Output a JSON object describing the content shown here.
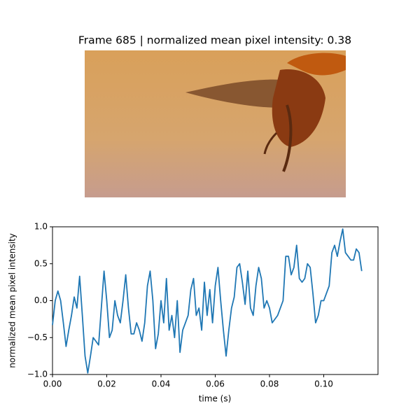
{
  "chart_data": {
    "type": "line",
    "title": "Frame 685 | normalized mean pixel intensity: 0.38",
    "xlabel": "time (s)",
    "ylabel": "normalized mean pixel intensity",
    "color": "#1f77b4",
    "xlim": [
      0,
      0.12
    ],
    "ylim": [
      -1,
      1
    ],
    "xticks": [
      {
        "value": 0,
        "label": "0.00"
      },
      {
        "value": 0.02,
        "label": "0.02"
      },
      {
        "value": 0.04,
        "label": "0.04"
      },
      {
        "value": 0.06,
        "label": "0.06"
      },
      {
        "value": 0.08,
        "label": "0.08"
      },
      {
        "value": 0.1,
        "label": "0.10"
      }
    ],
    "yticks": [
      {
        "value": -1,
        "label": "−1.0"
      },
      {
        "value": -0.5,
        "label": "−0.5"
      },
      {
        "value": 0,
        "label": "0.0"
      },
      {
        "value": 0.5,
        "label": "0.5"
      },
      {
        "value": 1,
        "label": "1.0"
      }
    ],
    "x": [
      0,
      0.001,
      0.002,
      0.003,
      0.004,
      0.005,
      0.006,
      0.007,
      0.008,
      0.009,
      0.01,
      0.011,
      0.012,
      0.013,
      0.014,
      0.015,
      0.016,
      0.017,
      0.018,
      0.019,
      0.02,
      0.021,
      0.022,
      0.023,
      0.024,
      0.025,
      0.026,
      0.027,
      0.028,
      0.029,
      0.03,
      0.031,
      0.032,
      0.033,
      0.034,
      0.035,
      0.036,
      0.037,
      0.038,
      0.039,
      0.04,
      0.041,
      0.042,
      0.043,
      0.044,
      0.045,
      0.046,
      0.047,
      0.048,
      0.049,
      0.05,
      0.051,
      0.052,
      0.053,
      0.054,
      0.055,
      0.056,
      0.057,
      0.058,
      0.059,
      0.06,
      0.061,
      0.062,
      0.063,
      0.064,
      0.065,
      0.066,
      0.067,
      0.068,
      0.069,
      0.07,
      0.071,
      0.072,
      0.073,
      0.074,
      0.075,
      0.076,
      0.077,
      0.078,
      0.079,
      0.08,
      0.081,
      0.082,
      0.083,
      0.084,
      0.085,
      0.086,
      0.087,
      0.088,
      0.089,
      0.09,
      0.091,
      0.092,
      0.093,
      0.094,
      0.095,
      0.096,
      0.097,
      0.098,
      0.099,
      0.1,
      0.101,
      0.102,
      0.103,
      0.104,
      0.105,
      0.106,
      0.107,
      0.108,
      0.109,
      0.11,
      0.111,
      0.112,
      0.113,
      0.114
    ],
    "values": [
      -0.33,
      0.0,
      0.13,
      0.0,
      -0.3,
      -0.62,
      -0.4,
      -0.2,
      0.05,
      -0.1,
      0.33,
      -0.2,
      -0.75,
      -0.98,
      -0.75,
      -0.5,
      -0.55,
      -0.6,
      -0.1,
      0.4,
      0.0,
      -0.5,
      -0.4,
      0.0,
      -0.2,
      -0.3,
      0.0,
      0.35,
      -0.1,
      -0.45,
      -0.45,
      -0.3,
      -0.4,
      -0.55,
      -0.3,
      0.2,
      0.4,
      0.0,
      -0.65,
      -0.45,
      0.0,
      -0.3,
      0.3,
      -0.4,
      -0.2,
      -0.5,
      0.0,
      -0.7,
      -0.4,
      -0.3,
      -0.2,
      0.15,
      0.3,
      -0.2,
      -0.1,
      -0.4,
      0.25,
      -0.2,
      0.15,
      -0.3,
      0.2,
      0.45,
      0.0,
      -0.4,
      -0.75,
      -0.4,
      -0.1,
      0.05,
      0.45,
      0.5,
      0.25,
      -0.05,
      0.4,
      -0.1,
      -0.2,
      0.2,
      0.45,
      0.3,
      -0.1,
      0.0,
      -0.1,
      -0.3,
      -0.25,
      -0.2,
      -0.1,
      0.0,
      0.6,
      0.6,
      0.35,
      0.45,
      0.75,
      0.3,
      0.25,
      0.3,
      0.5,
      0.45,
      0.1,
      -0.3,
      -0.2,
      0.0,
      0.0,
      0.1,
      0.2,
      0.65,
      0.75,
      0.6,
      0.8,
      0.97,
      0.65,
      0.6,
      0.55,
      0.55,
      0.7,
      0.65,
      0.4
    ]
  }
}
